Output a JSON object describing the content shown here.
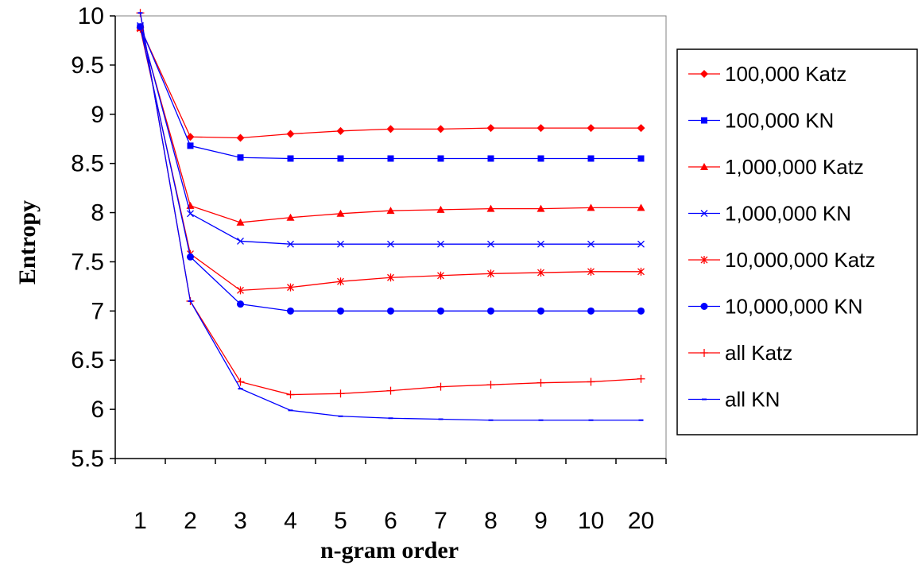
{
  "chart_data": {
    "type": "line",
    "title": "",
    "xlabel": "n-gram order",
    "ylabel": "Entropy",
    "categories": [
      "1",
      "2",
      "3",
      "4",
      "5",
      "6",
      "7",
      "8",
      "9",
      "10",
      "20"
    ],
    "ylim": [
      5.5,
      10
    ],
    "yticks": [
      "5.5",
      "6",
      "6.5",
      "7",
      "7.5",
      "8",
      "8.5",
      "9",
      "9.5",
      "10"
    ],
    "grid": false,
    "legend_position": "right",
    "series": [
      {
        "name": "100,000 Katz",
        "color": "#ff0000",
        "marker": "diamond",
        "values": [
          9.88,
          8.77,
          8.76,
          8.8,
          8.83,
          8.85,
          8.85,
          8.86,
          8.86,
          8.86,
          8.86
        ]
      },
      {
        "name": "100,000 KN",
        "color": "#0000ff",
        "marker": "square",
        "values": [
          9.89,
          8.68,
          8.56,
          8.55,
          8.55,
          8.55,
          8.55,
          8.55,
          8.55,
          8.55,
          8.55
        ]
      },
      {
        "name": "1,000,000 Katz",
        "color": "#ff0000",
        "marker": "triangle",
        "values": [
          9.88,
          8.07,
          7.9,
          7.95,
          7.99,
          8.02,
          8.03,
          8.04,
          8.04,
          8.05,
          8.05
        ]
      },
      {
        "name": "1,000,000 KN",
        "color": "#0000ff",
        "marker": "x",
        "values": [
          9.9,
          7.99,
          7.71,
          7.68,
          7.68,
          7.68,
          7.68,
          7.68,
          7.68,
          7.68,
          7.68
        ]
      },
      {
        "name": "10,000,000 Katz",
        "color": "#ff0000",
        "marker": "asterisk",
        "values": [
          9.87,
          7.58,
          7.21,
          7.24,
          7.3,
          7.34,
          7.36,
          7.38,
          7.39,
          7.4,
          7.4
        ]
      },
      {
        "name": "10,000,000 KN",
        "color": "#0000ff",
        "marker": "circle",
        "values": [
          9.89,
          7.55,
          7.07,
          7.0,
          7.0,
          7.0,
          7.0,
          7.0,
          7.0,
          7.0,
          7.0
        ]
      },
      {
        "name": "all Katz",
        "color": "#ff0000",
        "marker": "plus",
        "values": [
          10.03,
          7.1,
          6.28,
          6.15,
          6.16,
          6.19,
          6.23,
          6.25,
          6.27,
          6.28,
          6.31
        ]
      },
      {
        "name": "all KN",
        "color": "#0000ff",
        "marker": "dot",
        "values": [
          10.03,
          7.1,
          6.21,
          5.99,
          5.93,
          5.91,
          5.9,
          5.89,
          5.89,
          5.89,
          5.89
        ]
      }
    ]
  }
}
